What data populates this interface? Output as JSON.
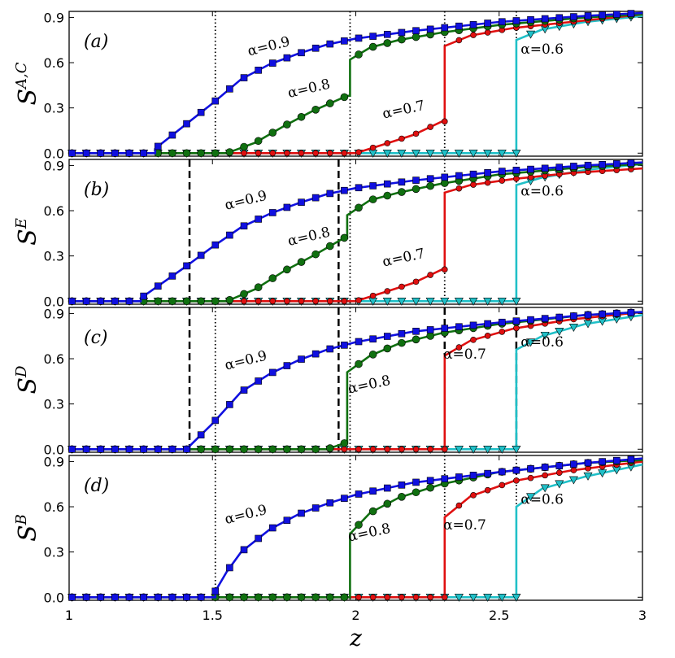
{
  "chart_data": {
    "type": "line",
    "xlabel": "z",
    "xlim": [
      1,
      3
    ],
    "xticks": [
      "1",
      "1.5",
      "2",
      "2.5",
      "3"
    ],
    "xtick_values": [
      1,
      1.5,
      2,
      2.5,
      3
    ],
    "ylim": [
      -0.02,
      0.94
    ],
    "yticks": [
      "0.0",
      "0.3",
      "0.6",
      "0.9"
    ],
    "ytick_values": [
      0.0,
      0.3,
      0.6,
      0.9
    ],
    "series_styles": [
      {
        "alpha": "0.9",
        "color": "#1010e0",
        "marker": "square"
      },
      {
        "alpha": "0.8",
        "color": "#107010",
        "marker": "circle"
      },
      {
        "alpha": "0.7",
        "color": "#e01010",
        "marker": "circle-small"
      },
      {
        "alpha": "0.6",
        "color": "#20c0c8",
        "marker": "triangle-down"
      }
    ],
    "panels": [
      {
        "label": "(a)",
        "ylabel": "S",
        "ylabel_sup": "A,C",
        "dotted_lines": [
          1.51,
          1.98,
          2.31,
          2.56
        ],
        "dashed_lines": [],
        "annotations": [
          {
            "text": "α=0.9",
            "x": 1.7,
            "y": 0.68,
            "angle": -14
          },
          {
            "text": "α=0.8",
            "x": 1.84,
            "y": 0.4,
            "angle": -13
          },
          {
            "text": "α=0.7",
            "x": 2.17,
            "y": 0.26,
            "angle": -12
          },
          {
            "text": "α=0.6",
            "x": 2.65,
            "y": 0.66,
            "angle": 0
          }
        ],
        "series": [
          {
            "name": "α=0.9",
            "jump_at": 1.3,
            "jump_low": 0,
            "jump_high": 0.03,
            "top": 0.93,
            "curve": [
              [
                1.3,
                0.03
              ],
              [
                1.5,
                0.33
              ],
              [
                1.6,
                0.49
              ],
              [
                1.7,
                0.59
              ],
              [
                1.8,
                0.66
              ],
              [
                1.9,
                0.72
              ],
              [
                2.0,
                0.76
              ],
              [
                2.2,
                0.81
              ],
              [
                2.5,
                0.87
              ],
              [
                2.8,
                0.91
              ],
              [
                3.0,
                0.93
              ]
            ]
          },
          {
            "name": "α=0.8",
            "jump_at": 1.98,
            "jump_low": 0.38,
            "jump_high": 0.62,
            "pre_start": 1.55,
            "pre": [
              [
                1.55,
                0.0
              ],
              [
                1.65,
                0.07
              ],
              [
                1.75,
                0.18
              ],
              [
                1.85,
                0.28
              ],
              [
                1.97,
                0.38
              ]
            ],
            "curve": [
              [
                1.98,
                0.62
              ],
              [
                2.05,
                0.7
              ],
              [
                2.15,
                0.75
              ],
              [
                2.3,
                0.8
              ],
              [
                2.5,
                0.85
              ],
              [
                2.8,
                0.9
              ],
              [
                3.0,
                0.92
              ]
            ]
          },
          {
            "name": "α=0.7",
            "jump_at": 2.31,
            "jump_low": 0.21,
            "jump_high": 0.71,
            "pre": [
              [
                2.0,
                0.0
              ],
              [
                2.1,
                0.06
              ],
              [
                2.2,
                0.12
              ],
              [
                2.3,
                0.21
              ]
            ],
            "curve": [
              [
                2.31,
                0.71
              ],
              [
                2.4,
                0.78
              ],
              [
                2.55,
                0.83
              ],
              [
                2.75,
                0.87
              ],
              [
                3.0,
                0.92
              ]
            ]
          },
          {
            "name": "α=0.6",
            "jump_at": 2.56,
            "jump_low": 0.0,
            "jump_high": 0.75,
            "pre": [],
            "curve": [
              [
                2.56,
                0.75
              ],
              [
                2.65,
                0.82
              ],
              [
                2.8,
                0.87
              ],
              [
                3.0,
                0.91
              ]
            ]
          }
        ]
      },
      {
        "label": "(b)",
        "ylabel": "S",
        "ylabel_sup": "E",
        "dotted_lines": [
          1.98,
          2.31,
          2.56
        ],
        "dashed_lines": [
          1.42,
          1.94
        ],
        "annotations": [
          {
            "text": "α=0.9",
            "x": 1.62,
            "y": 0.64,
            "angle": -14
          },
          {
            "text": "α=0.8",
            "x": 1.84,
            "y": 0.4,
            "angle": -13
          },
          {
            "text": "α=0.7",
            "x": 2.17,
            "y": 0.26,
            "angle": -12
          },
          {
            "text": "α=0.6",
            "x": 2.65,
            "y": 0.7,
            "angle": 0
          }
        ],
        "series": [
          {
            "name": "α=0.9",
            "jump_at": 1.25,
            "jump_low": 0,
            "jump_high": 0.02,
            "curve": [
              [
                1.25,
                0.02
              ],
              [
                1.4,
                0.22
              ],
              [
                1.5,
                0.36
              ],
              [
                1.6,
                0.49
              ],
              [
                1.7,
                0.58
              ],
              [
                1.8,
                0.65
              ],
              [
                1.9,
                0.71
              ],
              [
                2.0,
                0.75
              ],
              [
                2.2,
                0.8
              ],
              [
                2.5,
                0.86
              ],
              [
                2.8,
                0.9
              ],
              [
                3.0,
                0.92
              ]
            ]
          },
          {
            "name": "α=0.8",
            "jump_at": 1.97,
            "jump_low": 0.42,
            "jump_high": 0.57,
            "pre": [
              [
                1.55,
                0.0
              ],
              [
                1.65,
                0.08
              ],
              [
                1.75,
                0.2
              ],
              [
                1.85,
                0.3
              ],
              [
                1.96,
                0.42
              ]
            ],
            "curve": [
              [
                1.97,
                0.57
              ],
              [
                2.05,
                0.67
              ],
              [
                2.15,
                0.72
              ],
              [
                2.3,
                0.78
              ],
              [
                2.5,
                0.84
              ],
              [
                2.8,
                0.89
              ],
              [
                3.0,
                0.91
              ]
            ]
          },
          {
            "name": "α=0.7",
            "jump_at": 2.31,
            "jump_low": 0.21,
            "jump_high": 0.72,
            "pre": [
              [
                2.0,
                0.0
              ],
              [
                2.1,
                0.06
              ],
              [
                2.2,
                0.12
              ],
              [
                2.3,
                0.21
              ]
            ],
            "curve": [
              [
                2.31,
                0.72
              ],
              [
                2.4,
                0.77
              ],
              [
                2.55,
                0.81
              ],
              [
                2.75,
                0.85
              ],
              [
                3.0,
                0.88
              ]
            ]
          },
          {
            "name": "α=0.6",
            "jump_at": 2.56,
            "jump_low": 0.0,
            "jump_high": 0.77,
            "pre": [],
            "curve": [
              [
                2.56,
                0.77
              ],
              [
                2.65,
                0.82
              ],
              [
                2.8,
                0.87
              ],
              [
                3.0,
                0.91
              ]
            ]
          }
        ]
      },
      {
        "label": "(c)",
        "ylabel": "S",
        "ylabel_sup": "D",
        "dotted_lines": [
          1.51,
          1.98
        ],
        "dashed_lines": [
          1.42,
          1.94,
          2.31,
          2.56
        ],
        "annotations": [
          {
            "text": "α=0.9",
            "x": 1.62,
            "y": 0.56,
            "angle": -14
          },
          {
            "text": "α=0.8",
            "x": 2.05,
            "y": 0.4,
            "angle": -12
          },
          {
            "text": "α=0.7",
            "x": 2.38,
            "y": 0.6,
            "angle": 0
          },
          {
            "text": "α=0.6",
            "x": 2.65,
            "y": 0.68,
            "angle": 0
          }
        ],
        "series": [
          {
            "name": "α=0.9",
            "jump_at": 1.42,
            "jump_low": 0,
            "jump_high": 0.02,
            "curve": [
              [
                1.42,
                0.02
              ],
              [
                1.5,
                0.17
              ],
              [
                1.6,
                0.38
              ],
              [
                1.7,
                0.5
              ],
              [
                1.8,
                0.59
              ],
              [
                1.9,
                0.66
              ],
              [
                2.0,
                0.71
              ],
              [
                2.2,
                0.78
              ],
              [
                2.5,
                0.84
              ],
              [
                2.8,
                0.89
              ],
              [
                3.0,
                0.91
              ]
            ]
          },
          {
            "name": "α=0.8",
            "jump_at": 1.97,
            "jump_low": 0.04,
            "jump_high": 0.51,
            "pre": [
              [
                1.9,
                0.0
              ],
              [
                1.96,
                0.04
              ]
            ],
            "curve": [
              [
                1.97,
                0.51
              ],
              [
                2.05,
                0.62
              ],
              [
                2.15,
                0.7
              ],
              [
                2.3,
                0.77
              ],
              [
                2.5,
                0.83
              ],
              [
                2.8,
                0.89
              ],
              [
                3.0,
                0.91
              ]
            ]
          },
          {
            "name": "α=0.7",
            "jump_at": 2.31,
            "jump_low": 0.0,
            "jump_high": 0.62,
            "pre": [],
            "curve": [
              [
                2.31,
                0.62
              ],
              [
                2.4,
                0.72
              ],
              [
                2.55,
                0.8
              ],
              [
                2.75,
                0.86
              ],
              [
                3.0,
                0.91
              ]
            ]
          },
          {
            "name": "α=0.6",
            "jump_at": 2.56,
            "jump_low": 0.0,
            "jump_high": 0.66,
            "pre": [],
            "curve": [
              [
                2.56,
                0.66
              ],
              [
                2.65,
                0.75
              ],
              [
                2.8,
                0.83
              ],
              [
                3.0,
                0.89
              ]
            ]
          }
        ]
      },
      {
        "label": "(d)",
        "ylabel": "S",
        "ylabel_sup": "B",
        "dotted_lines": [
          1.51,
          1.98,
          2.31,
          2.56
        ],
        "dashed_lines": [],
        "annotations": [
          {
            "text": "α=0.9",
            "x": 1.62,
            "y": 0.52,
            "angle": -14
          },
          {
            "text": "α=0.8",
            "x": 2.05,
            "y": 0.4,
            "angle": -12
          },
          {
            "text": "α=0.7",
            "x": 2.38,
            "y": 0.45,
            "angle": 0
          },
          {
            "text": "α=0.6",
            "x": 2.65,
            "y": 0.62,
            "angle": 0
          }
        ],
        "series": [
          {
            "name": "α=0.9",
            "jump_at": 1.51,
            "jump_low": 0,
            "jump_high": 0.04,
            "curve": [
              [
                1.51,
                0.04
              ],
              [
                1.55,
                0.17
              ],
              [
                1.6,
                0.3
              ],
              [
                1.7,
                0.45
              ],
              [
                1.8,
                0.55
              ],
              [
                1.9,
                0.62
              ],
              [
                2.0,
                0.68
              ],
              [
                2.2,
                0.76
              ],
              [
                2.5,
                0.83
              ],
              [
                2.8,
                0.89
              ],
              [
                3.0,
                0.92
              ]
            ]
          },
          {
            "name": "α=0.8",
            "jump_at": 1.98,
            "jump_low": 0.0,
            "jump_high": 0.42,
            "pre": [],
            "curve": [
              [
                1.98,
                0.42
              ],
              [
                2.05,
                0.56
              ],
              [
                2.15,
                0.66
              ],
              [
                2.3,
                0.75
              ],
              [
                2.5,
                0.83
              ],
              [
                2.8,
                0.89
              ],
              [
                3.0,
                0.91
              ]
            ]
          },
          {
            "name": "α=0.7",
            "jump_at": 2.31,
            "jump_low": 0.0,
            "jump_high": 0.53,
            "pre": [],
            "curve": [
              [
                2.31,
                0.53
              ],
              [
                2.4,
                0.67
              ],
              [
                2.55,
                0.77
              ],
              [
                2.75,
                0.84
              ],
              [
                3.0,
                0.9
              ]
            ]
          },
          {
            "name": "α=0.6",
            "jump_at": 2.56,
            "jump_low": 0.0,
            "jump_high": 0.6,
            "pre": [],
            "curve": [
              [
                2.56,
                0.6
              ],
              [
                2.65,
                0.72
              ],
              [
                2.8,
                0.8
              ],
              [
                3.0,
                0.88
              ]
            ]
          }
        ]
      }
    ]
  }
}
